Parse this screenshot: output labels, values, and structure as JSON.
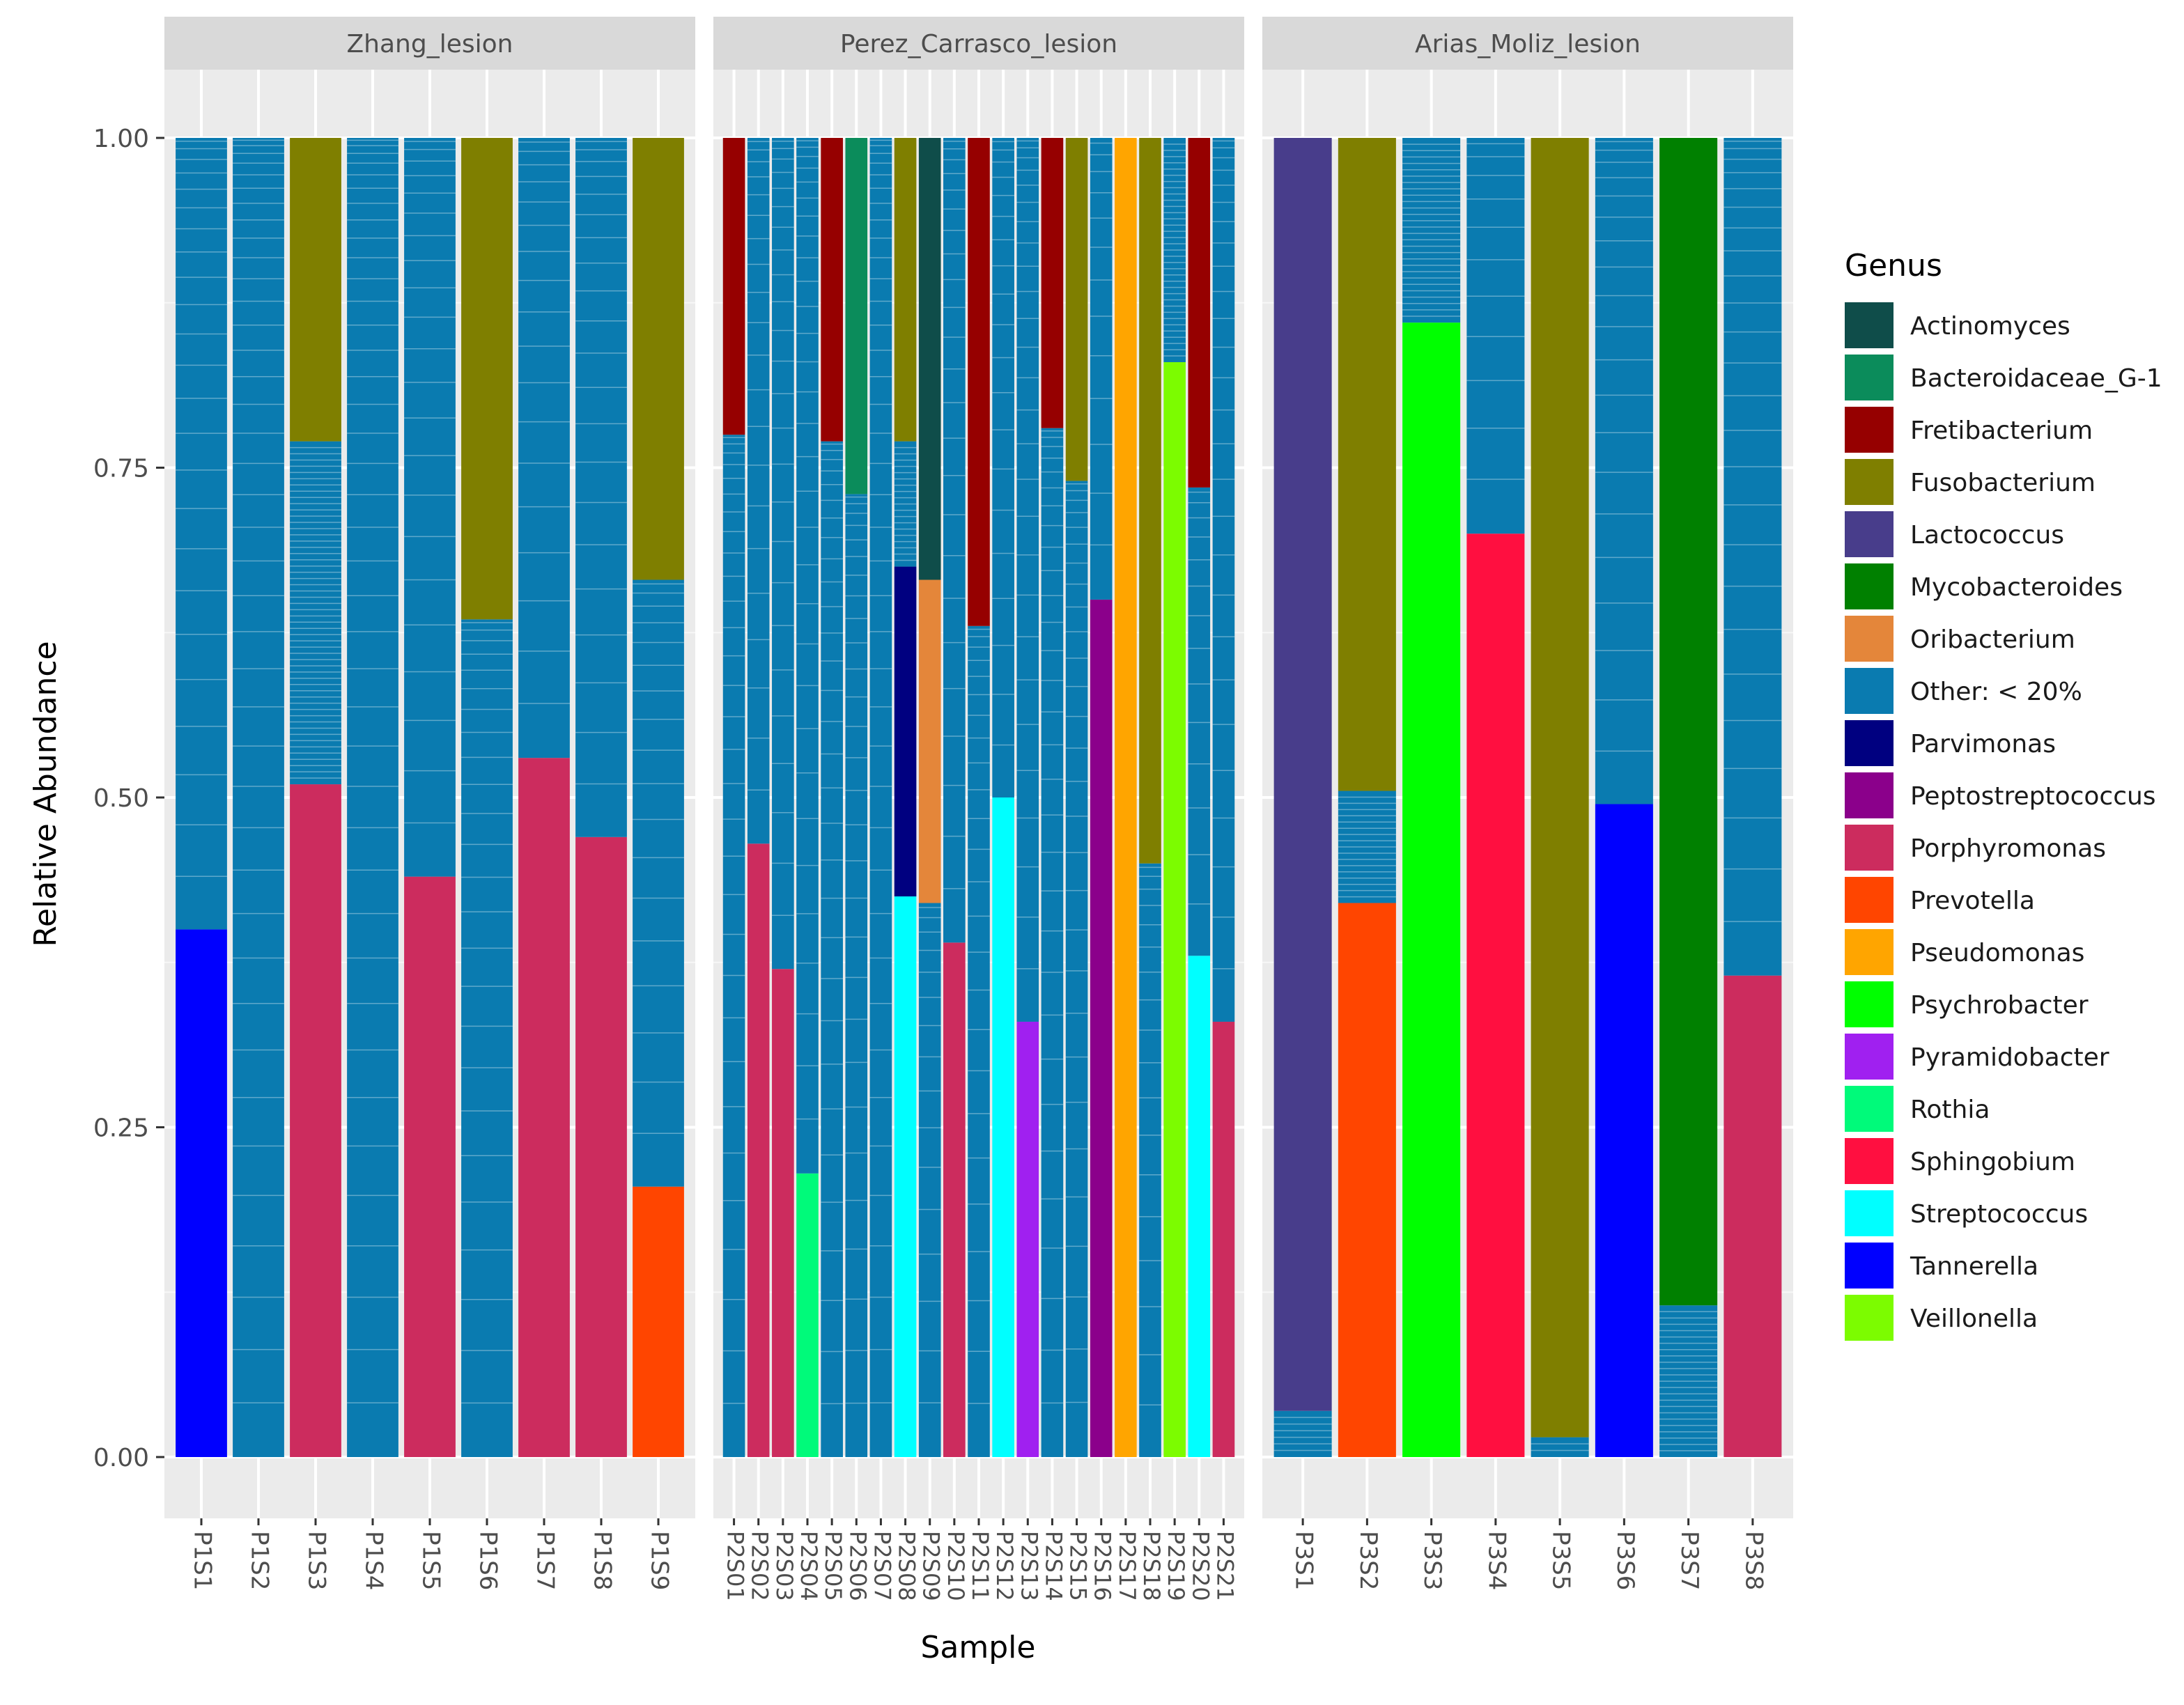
{
  "chart_data": {
    "type": "bar",
    "stacked": true,
    "xlabel": "Sample",
    "ylabel": "Relative Abundance",
    "ylim": [
      0,
      1
    ],
    "yticks": [
      "0.00",
      "0.25",
      "0.50",
      "0.75",
      "1.00"
    ],
    "legend": {
      "title": "Genus",
      "placement": "right"
    },
    "colors": {
      "Actinomyces": "#0f4d4a",
      "Bacteroidaceae_G-1": "#0b8c5b",
      "Fretibacterium": "#960000",
      "Fusobacterium": "#7f7f00",
      "Lactococcus": "#483d8b",
      "Mycobacteroides": "#008000",
      "Oribacterium": "#e4863a",
      "Other: < 20%": "#0a7bb0",
      "Parvimonas": "#000080",
      "Peptostreptococcus": "#8b008b",
      "Porphyromonas": "#cc2c5e",
      "Prevotella": "#ff4500",
      "Pseudomonas": "#ffa500",
      "Psychrobacter": "#00ff00",
      "Pyramidobacter": "#a020f0",
      "Rothia": "#00fa7a",
      "Sphingobium": "#ff0f40",
      "Streptococcus": "#00ffff",
      "Tannerella": "#0000ff",
      "Veillonella": "#7cfc00"
    },
    "genera": [
      "Actinomyces",
      "Bacteroidaceae_G-1",
      "Fretibacterium",
      "Fusobacterium",
      "Lactococcus",
      "Mycobacteroides",
      "Oribacterium",
      "Other: < 20%",
      "Parvimonas",
      "Peptostreptococcus",
      "Porphyromonas",
      "Prevotella",
      "Pseudomonas",
      "Psychrobacter",
      "Pyramidobacter",
      "Rothia",
      "Sphingobium",
      "Streptococcus",
      "Tannerella",
      "Veillonella"
    ],
    "panels": [
      {
        "title": "Zhang_lesion",
        "samples": [
          {
            "name": "P1S1",
            "segments": [
              {
                "genus": "Tannerella",
                "value": 0.4
              },
              {
                "genus": "Other: < 20%",
                "value": 0.6
              }
            ]
          },
          {
            "name": "P1S2",
            "segments": [
              {
                "genus": "Other: < 20%",
                "value": 1.0
              }
            ]
          },
          {
            "name": "P1S3",
            "segments": [
              {
                "genus": "Porphyromonas",
                "value": 0.51
              },
              {
                "genus": "Other: < 20%",
                "value": 0.26
              },
              {
                "genus": "Fusobacterium",
                "value": 0.23
              }
            ]
          },
          {
            "name": "P1S4",
            "segments": [
              {
                "genus": "Other: < 20%",
                "value": 1.0
              }
            ]
          },
          {
            "name": "P1S5",
            "segments": [
              {
                "genus": "Porphyromonas",
                "value": 0.44
              },
              {
                "genus": "Other: < 20%",
                "value": 0.56
              }
            ]
          },
          {
            "name": "P1S6",
            "segments": [
              {
                "genus": "Other: < 20%",
                "value": 0.635
              },
              {
                "genus": "Fusobacterium",
                "value": 0.365
              }
            ]
          },
          {
            "name": "P1S7",
            "segments": [
              {
                "genus": "Porphyromonas",
                "value": 0.53
              },
              {
                "genus": "Other: < 20%",
                "value": 0.47
              }
            ]
          },
          {
            "name": "P1S8",
            "segments": [
              {
                "genus": "Porphyromonas",
                "value": 0.47
              },
              {
                "genus": "Other: < 20%",
                "value": 0.53
              }
            ]
          },
          {
            "name": "P1S9",
            "segments": [
              {
                "genus": "Prevotella",
                "value": 0.205
              },
              {
                "genus": "Other: < 20%",
                "value": 0.46
              },
              {
                "genus": "Fusobacterium",
                "value": 0.335
              }
            ]
          }
        ]
      },
      {
        "title": "Perez_Carrasco_lesion",
        "samples": [
          {
            "name": "P2S01",
            "segments": [
              {
                "genus": "Other: < 20%",
                "value": 0.775
              },
              {
                "genus": "Fretibacterium",
                "value": 0.225
              }
            ]
          },
          {
            "name": "P2S02",
            "segments": [
              {
                "genus": "Porphyromonas",
                "value": 0.465
              },
              {
                "genus": "Other: < 20%",
                "value": 0.535
              }
            ]
          },
          {
            "name": "P2S03",
            "segments": [
              {
                "genus": "Porphyromonas",
                "value": 0.37
              },
              {
                "genus": "Other: < 20%",
                "value": 0.63
              }
            ]
          },
          {
            "name": "P2S04",
            "segments": [
              {
                "genus": "Rothia",
                "value": 0.215
              },
              {
                "genus": "Other: < 20%",
                "value": 0.785
              }
            ]
          },
          {
            "name": "P2S05",
            "segments": [
              {
                "genus": "Other: < 20%",
                "value": 0.77
              },
              {
                "genus": "Fretibacterium",
                "value": 0.23
              }
            ]
          },
          {
            "name": "P2S06",
            "segments": [
              {
                "genus": "Other: < 20%",
                "value": 0.73
              },
              {
                "genus": "Bacteroidaceae_G-1",
                "value": 0.27
              }
            ]
          },
          {
            "name": "P2S07",
            "segments": [
              {
                "genus": "Other: < 20%",
                "value": 1.0
              }
            ]
          },
          {
            "name": "P2S08",
            "segments": [
              {
                "genus": "Streptococcus",
                "value": 0.425
              },
              {
                "genus": "Parvimonas",
                "value": 0.25
              },
              {
                "genus": "Other: < 20%",
                "value": 0.095
              },
              {
                "genus": "Fusobacterium",
                "value": 0.23
              }
            ]
          },
          {
            "name": "P2S09",
            "segments": [
              {
                "genus": "Other: < 20%",
                "value": 0.42
              },
              {
                "genus": "Oribacterium",
                "value": 0.245
              },
              {
                "genus": "Actinomyces",
                "value": 0.335
              }
            ]
          },
          {
            "name": "P2S10",
            "segments": [
              {
                "genus": "Porphyromonas",
                "value": 0.39
              },
              {
                "genus": "Other: < 20%",
                "value": 0.61
              }
            ]
          },
          {
            "name": "P2S11",
            "segments": [
              {
                "genus": "Other: < 20%",
                "value": 0.63
              },
              {
                "genus": "Fretibacterium",
                "value": 0.37
              }
            ]
          },
          {
            "name": "P2S12",
            "segments": [
              {
                "genus": "Streptococcus",
                "value": 0.5
              },
              {
                "genus": "Other: < 20%",
                "value": 0.5
              }
            ]
          },
          {
            "name": "P2S13",
            "segments": [
              {
                "genus": "Pyramidobacter",
                "value": 0.33
              },
              {
                "genus": "Other: < 20%",
                "value": 0.67
              }
            ]
          },
          {
            "name": "P2S14",
            "segments": [
              {
                "genus": "Other: < 20%",
                "value": 0.78
              },
              {
                "genus": "Fretibacterium",
                "value": 0.22
              }
            ]
          },
          {
            "name": "P2S15",
            "segments": [
              {
                "genus": "Other: < 20%",
                "value": 0.74
              },
              {
                "genus": "Fusobacterium",
                "value": 0.26
              }
            ]
          },
          {
            "name": "P2S16",
            "segments": [
              {
                "genus": "Peptostreptococcus",
                "value": 0.65
              },
              {
                "genus": "Other: < 20%",
                "value": 0.35
              }
            ]
          },
          {
            "name": "P2S17",
            "segments": [
              {
                "genus": "Pseudomonas",
                "value": 1.0
              }
            ]
          },
          {
            "name": "P2S18",
            "segments": [
              {
                "genus": "Other: < 20%",
                "value": 0.45
              },
              {
                "genus": "Fusobacterium",
                "value": 0.55
              }
            ]
          },
          {
            "name": "P2S19",
            "segments": [
              {
                "genus": "Veillonella",
                "value": 0.83
              },
              {
                "genus": "Other: < 20%",
                "value": 0.17
              }
            ]
          },
          {
            "name": "P2S20",
            "segments": [
              {
                "genus": "Streptococcus",
                "value": 0.38
              },
              {
                "genus": "Other: < 20%",
                "value": 0.355
              },
              {
                "genus": "Fretibacterium",
                "value": 0.265
              }
            ]
          },
          {
            "name": "P2S21",
            "segments": [
              {
                "genus": "Porphyromonas",
                "value": 0.33
              },
              {
                "genus": "Other: < 20%",
                "value": 0.67
              }
            ]
          }
        ]
      },
      {
        "title": "Arias_Moliz_lesion",
        "samples": [
          {
            "name": "P3S1",
            "segments": [
              {
                "genus": "Other: < 20%",
                "value": 0.035
              },
              {
                "genus": "Lactococcus",
                "value": 0.965
              }
            ]
          },
          {
            "name": "P3S2",
            "segments": [
              {
                "genus": "Prevotella",
                "value": 0.42
              },
              {
                "genus": "Other: < 20%",
                "value": 0.085
              },
              {
                "genus": "Fusobacterium",
                "value": 0.495
              }
            ]
          },
          {
            "name": "P3S3",
            "segments": [
              {
                "genus": "Psychrobacter",
                "value": 0.86
              },
              {
                "genus": "Other: < 20%",
                "value": 0.14
              }
            ]
          },
          {
            "name": "P3S4",
            "segments": [
              {
                "genus": "Sphingobium",
                "value": 0.7
              },
              {
                "genus": "Other: < 20%",
                "value": 0.3
              }
            ]
          },
          {
            "name": "P3S5",
            "segments": [
              {
                "genus": "Other: < 20%",
                "value": 0.015
              },
              {
                "genus": "Fusobacterium",
                "value": 0.985
              }
            ]
          },
          {
            "name": "P3S6",
            "segments": [
              {
                "genus": "Tannerella",
                "value": 0.495
              },
              {
                "genus": "Other: < 20%",
                "value": 0.505
              }
            ]
          },
          {
            "name": "P3S7",
            "segments": [
              {
                "genus": "Other: < 20%",
                "value": 0.115
              },
              {
                "genus": "Mycobacteroides",
                "value": 0.885
              }
            ]
          },
          {
            "name": "P3S8",
            "segments": [
              {
                "genus": "Porphyromonas",
                "value": 0.365
              },
              {
                "genus": "Other: < 20%",
                "value": 0.635
              }
            ]
          }
        ]
      }
    ]
  }
}
